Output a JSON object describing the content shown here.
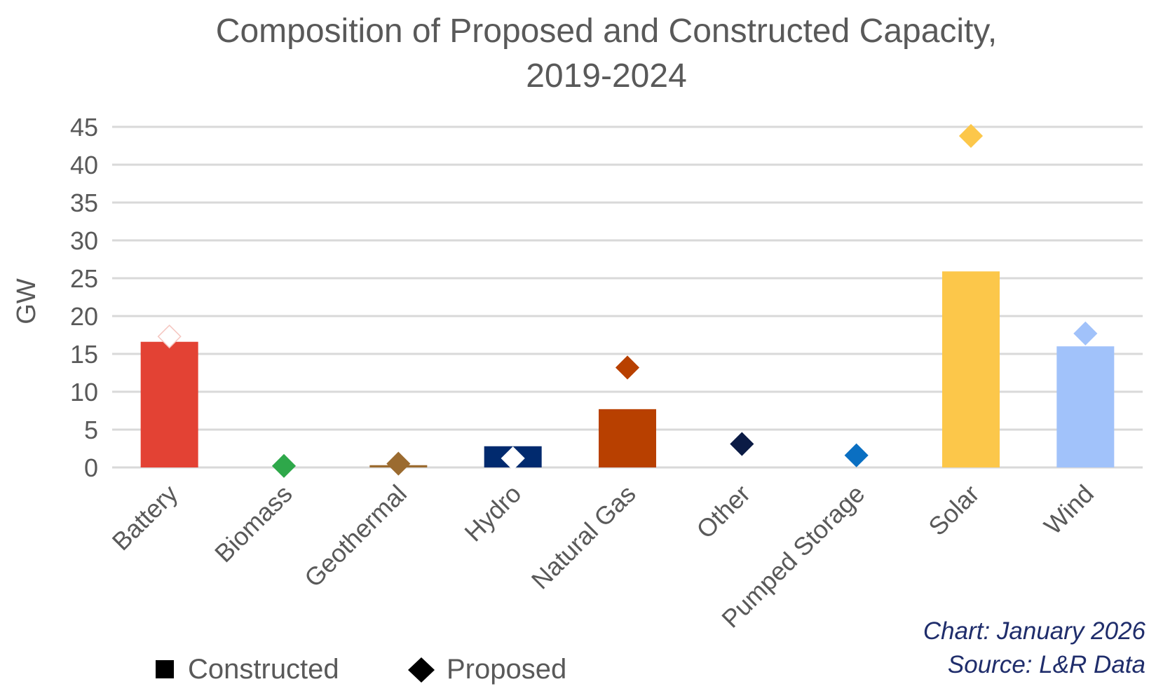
{
  "chart_data": {
    "type": "bar",
    "title": [
      "Composition of Proposed and Constructed Capacity,",
      "2019-2024"
    ],
    "ylabel": "GW",
    "xlabel": "",
    "ylim": [
      0,
      45
    ],
    "yticks": [
      0,
      5,
      10,
      15,
      20,
      25,
      30,
      35,
      40,
      45
    ],
    "grid": true,
    "legend_position": "bottom-left",
    "categories": [
      "Battery",
      "Biomass",
      "Geothermal",
      "Hydro",
      "Natural Gas",
      "Other",
      "Pumped Storage",
      "Solar",
      "Wind"
    ],
    "colors": [
      "#E34234",
      "#2EA84A",
      "#9B6B30",
      "#012A6E",
      "#B84000",
      "#0B1B45",
      "#0A6FC2",
      "#FCC74A",
      "#A1C2FA"
    ],
    "series": [
      {
        "name": "Constructed",
        "mark": "bar",
        "values": [
          16.6,
          0,
          0.3,
          2.8,
          7.7,
          0,
          0,
          25.9,
          16.0
        ]
      },
      {
        "name": "Proposed",
        "mark": "diamond",
        "values": [
          17.3,
          0.2,
          0.5,
          1.2,
          13.2,
          3.1,
          1.6,
          43.8,
          17.7
        ]
      }
    ],
    "proposed_marker_fill_overrides": {
      "Battery": "#FFFFFF",
      "Hydro": "#FFFFFF"
    },
    "annotations": [
      "Chart: January 2026",
      "Source: L&R Data"
    ]
  }
}
